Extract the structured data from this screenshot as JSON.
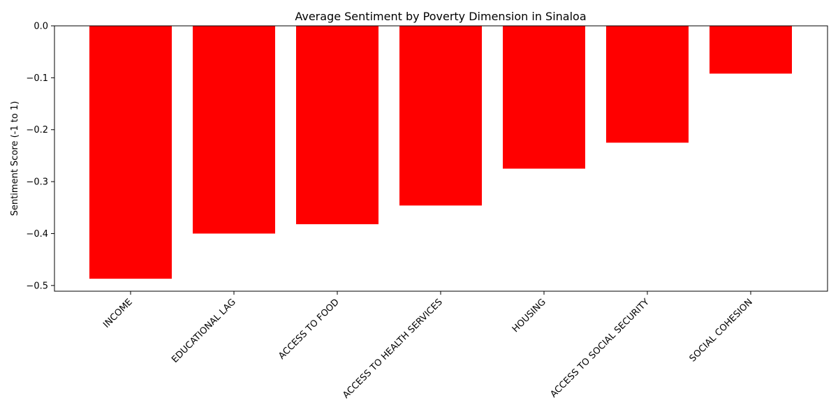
{
  "chart_data": {
    "type": "bar",
    "title": "Average Sentiment by Poverty Dimension in Sinaloa",
    "xlabel": "",
    "ylabel": "Sentiment Score (-1 to 1)",
    "categories": [
      "INCOME",
      "EDUCATIONAL LAG",
      "ACCESS TO FOOD",
      "ACCESS TO HEALTH SERVICES",
      "HOUSING",
      "ACCESS TO SOCIAL SECURITY",
      "SOCIAL COHESION"
    ],
    "values": [
      -0.487,
      -0.4,
      -0.382,
      -0.346,
      -0.275,
      -0.225,
      -0.092
    ],
    "ylim": [
      -0.511,
      0.0
    ],
    "yticks": [
      0.0,
      -0.1,
      -0.2,
      -0.3,
      -0.4,
      -0.5
    ],
    "ytick_labels": [
      "0.0",
      "−0.1",
      "−0.2",
      "−0.3",
      "−0.4",
      "−0.5"
    ],
    "bar_color": "#ff0000",
    "grid": false,
    "legend": "none"
  }
}
